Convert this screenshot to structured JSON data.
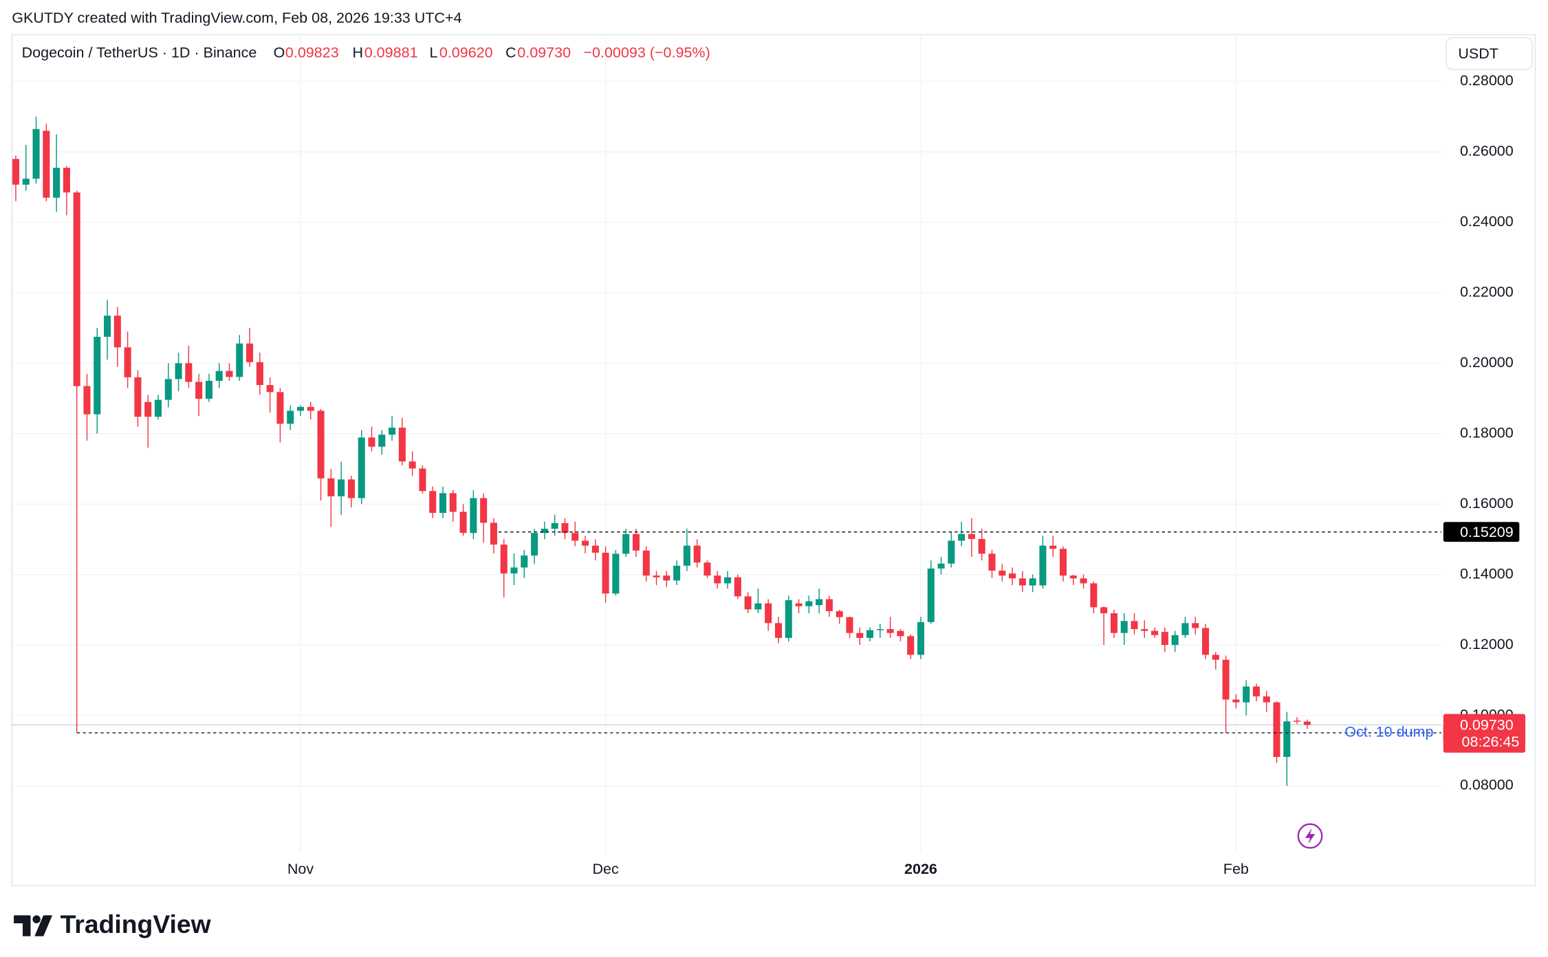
{
  "watermark": "GKUTDY created with TradingView.com, Feb 08, 2026 19:33 UTC+4",
  "logo": "TradingView",
  "chart_data": {
    "type": "candlestick",
    "title": "Dogecoin / TetherUS · 1D · Binance",
    "legend": {
      "labels": [
        "O",
        "H",
        "L",
        "C"
      ],
      "values": [
        "0.09823",
        "0.09881",
        "0.09620",
        "0.09730"
      ],
      "change": "−0.00093 (−0.95%)"
    },
    "currency": "USDT",
    "categories": [
      null,
      null,
      null,
      null,
      null,
      null,
      null,
      null,
      null,
      null,
      null,
      null,
      null,
      null,
      null,
      null,
      null,
      null,
      null,
      null,
      null,
      null,
      null,
      null,
      null,
      null,
      null,
      null,
      "Nov",
      null,
      null,
      null,
      null,
      null,
      null,
      null,
      null,
      null,
      null,
      null,
      null,
      null,
      null,
      null,
      null,
      null,
      null,
      null,
      null,
      null,
      null,
      null,
      null,
      null,
      null,
      null,
      null,
      null,
      "Dec",
      null,
      null,
      null,
      null,
      null,
      null,
      null,
      null,
      null,
      null,
      null,
      null,
      null,
      null,
      null,
      null,
      null,
      null,
      null,
      null,
      null,
      null,
      null,
      null,
      null,
      null,
      null,
      null,
      null,
      null,
      "2026",
      null,
      null,
      null,
      null,
      null,
      null,
      null,
      null,
      null,
      null,
      null,
      null,
      null,
      null,
      null,
      null,
      null,
      null,
      null,
      null,
      null,
      null,
      null,
      null,
      null,
      null,
      null,
      null,
      null,
      null,
      "Feb",
      null,
      null,
      null,
      null,
      null,
      null,
      null
    ],
    "open": [
      0.258,
      0.2507,
      0.2524,
      0.266,
      0.247,
      0.2555,
      0.2485,
      0.1935,
      0.1855,
      0.2075,
      0.2135,
      0.2045,
      0.196,
      0.189,
      0.1848,
      0.1896,
      0.1955,
      0.2,
      0.1947,
      0.1899,
      0.195,
      0.1978,
      0.1961,
      0.2056,
      0.2003,
      0.1938,
      0.1918,
      0.1828,
      0.1865,
      0.1876,
      0.1865,
      0.1673,
      0.1622,
      0.167,
      0.1617,
      0.1789,
      0.1763,
      0.1797,
      0.1817,
      0.1721,
      0.1701,
      0.1637,
      0.1575,
      0.1631,
      0.1578,
      0.1518,
      0.1617,
      0.1547,
      0.1485,
      0.1403,
      0.142,
      0.1454,
      0.1518,
      0.153,
      0.1546,
      0.1518,
      0.1496,
      0.1482,
      0.1462,
      0.1346,
      0.1459,
      0.1515,
      0.1468,
      0.1397,
      0.1397,
      0.1383,
      0.1425,
      0.1482,
      0.1434,
      0.1397,
      0.1375,
      0.1392,
      0.1338,
      0.1301,
      0.1318,
      0.1262,
      0.122,
      0.1318,
      0.131,
      0.1313,
      0.133,
      0.1296,
      0.1279,
      0.1234,
      0.122,
      0.1242,
      0.1245,
      0.124,
      0.1225,
      0.1172,
      0.1265,
      0.1417,
      0.1431,
      0.1496,
      0.1515,
      0.1501,
      0.1459,
      0.1411,
      0.1403,
      0.1389,
      0.1369,
      0.1369,
      0.1482,
      0.1473,
      0.1397,
      0.1389,
      0.1375,
      0.1307,
      0.129,
      0.1234,
      0.1268,
      0.1245,
      0.124,
      0.1237,
      0.12,
      0.1228,
      0.1262,
      0.1248,
      0.1172,
      0.1158,
      0.1045,
      0.1037,
      0.1082,
      0.1054,
      0.1037,
      0.0882,
      0.0985,
      0.09823
    ],
    "high": [
      0.259,
      0.262,
      0.27,
      0.268,
      0.265,
      0.256,
      0.249,
      0.197,
      0.21,
      0.218,
      0.216,
      0.209,
      0.198,
      0.191,
      0.191,
      0.2,
      0.203,
      0.205,
      0.197,
      0.197,
      0.2,
      0.2,
      0.208,
      0.21,
      0.203,
      0.196,
      0.193,
      0.188,
      0.188,
      0.189,
      0.187,
      0.17,
      0.172,
      0.168,
      0.181,
      0.182,
      0.181,
      0.185,
      0.1845,
      0.175,
      0.171,
      0.165,
      0.165,
      0.164,
      0.16,
      0.164,
      0.163,
      0.156,
      0.15,
      0.146,
      0.147,
      0.153,
      0.155,
      0.157,
      0.156,
      0.155,
      0.151,
      0.15,
      0.148,
      0.147,
      0.153,
      0.153,
      0.148,
      0.141,
      0.141,
      0.144,
      0.153,
      0.15,
      0.144,
      0.141,
      0.141,
      0.14,
      0.135,
      0.136,
      0.133,
      0.128,
      0.134,
      0.133,
      0.134,
      0.136,
      0.134,
      0.13,
      0.128,
      0.125,
      0.125,
      0.126,
      0.128,
      0.1245,
      0.123,
      0.128,
      0.144,
      0.145,
      0.152,
      0.155,
      0.156,
      0.153,
      0.147,
      0.143,
      0.142,
      0.141,
      0.14,
      0.151,
      0.151,
      0.148,
      0.14,
      0.14,
      0.138,
      0.131,
      0.13,
      0.129,
      0.129,
      0.127,
      0.125,
      0.125,
      0.124,
      0.128,
      0.128,
      0.126,
      0.118,
      0.117,
      0.106,
      0.11,
      0.109,
      0.107,
      0.104,
      0.101,
      0.0995,
      0.09881
    ],
    "low": [
      0.246,
      0.249,
      0.251,
      0.246,
      0.243,
      0.242,
      0.095,
      0.178,
      0.18,
      0.201,
      0.199,
      0.193,
      0.182,
      0.176,
      0.184,
      0.1875,
      0.192,
      0.193,
      0.185,
      0.189,
      0.193,
      0.195,
      0.195,
      0.199,
      0.191,
      0.186,
      0.1775,
      0.181,
      0.185,
      0.184,
      0.161,
      0.1535,
      0.157,
      0.159,
      0.16,
      0.175,
      0.174,
      0.178,
      0.171,
      0.168,
      0.163,
      0.156,
      0.156,
      0.155,
      0.151,
      0.15,
      0.149,
      0.146,
      0.1335,
      0.137,
      0.139,
      0.143,
      0.15,
      0.151,
      0.15,
      0.148,
      0.146,
      0.144,
      0.132,
      0.134,
      0.145,
      0.145,
      0.138,
      0.137,
      0.1365,
      0.137,
      0.141,
      0.142,
      0.139,
      0.136,
      0.136,
      0.133,
      0.129,
      0.129,
      0.124,
      0.1205,
      0.121,
      0.129,
      0.129,
      0.129,
      0.128,
      0.126,
      0.122,
      0.12,
      0.121,
      0.122,
      0.122,
      0.121,
      0.116,
      0.116,
      0.126,
      0.14,
      0.142,
      0.148,
      0.145,
      0.144,
      0.139,
      0.138,
      0.137,
      0.135,
      0.135,
      0.136,
      0.145,
      0.138,
      0.137,
      0.136,
      0.129,
      0.12,
      0.122,
      0.12,
      0.123,
      0.122,
      0.122,
      0.118,
      0.118,
      0.122,
      0.123,
      0.116,
      0.113,
      0.095,
      0.102,
      0.1,
      0.104,
      0.101,
      0.0865,
      0.08,
      0.0975,
      0.0962
    ],
    "close": [
      0.2507,
      0.2524,
      0.2665,
      0.247,
      0.2555,
      0.2485,
      0.1935,
      0.1855,
      0.2075,
      0.2135,
      0.2045,
      0.196,
      0.1848,
      0.1848,
      0.1896,
      0.1955,
      0.2,
      0.1947,
      0.1899,
      0.195,
      0.1978,
      0.1961,
      0.2056,
      0.2003,
      0.1938,
      0.1918,
      0.1828,
      0.1865,
      0.1876,
      0.1865,
      0.1673,
      0.1622,
      0.167,
      0.1617,
      0.1789,
      0.1763,
      0.1797,
      0.1817,
      0.1721,
      0.1701,
      0.1637,
      0.1575,
      0.1631,
      0.1578,
      0.1518,
      0.1617,
      0.1547,
      0.1485,
      0.1403,
      0.142,
      0.1454,
      0.1518,
      0.153,
      0.1546,
      0.1518,
      0.1496,
      0.1482,
      0.1462,
      0.1346,
      0.1459,
      0.1515,
      0.1468,
      0.1397,
      0.1392,
      0.1383,
      0.1425,
      0.1482,
      0.1434,
      0.1397,
      0.1375,
      0.1392,
      0.1338,
      0.1301,
      0.1318,
      0.1262,
      0.122,
      0.1327,
      0.131,
      0.1324,
      0.133,
      0.1296,
      0.1279,
      0.1234,
      0.122,
      0.1242,
      0.1245,
      0.1234,
      0.1225,
      0.1172,
      0.1265,
      0.1417,
      0.1431,
      0.1496,
      0.1515,
      0.1501,
      0.1459,
      0.1411,
      0.1397,
      0.1389,
      0.1369,
      0.1389,
      0.1482,
      0.1473,
      0.1397,
      0.1389,
      0.1375,
      0.1307,
      0.129,
      0.1234,
      0.1268,
      0.1245,
      0.124,
      0.1228,
      0.12,
      0.1228,
      0.1262,
      0.1248,
      0.1172,
      0.1158,
      0.1045,
      0.1037,
      0.1082,
      0.1054,
      0.1037,
      0.0882,
      0.0983,
      0.0982,
      0.0973
    ],
    "up_color": "#089981",
    "down_color": "#f23645",
    "ylim": [
      0.068,
      0.293
    ],
    "yticks": [
      {
        "value": 0.08,
        "label": "0.08000"
      },
      {
        "value": 0.1,
        "label": "0.10000"
      },
      {
        "value": 0.12,
        "label": "0.12000"
      },
      {
        "value": 0.14,
        "label": "0.14000"
      },
      {
        "value": 0.16,
        "label": "0.16000"
      },
      {
        "value": 0.18,
        "label": "0.18000"
      },
      {
        "value": 0.2,
        "label": "0.20000"
      },
      {
        "value": 0.22,
        "label": "0.22000"
      },
      {
        "value": 0.24,
        "label": "0.24000"
      },
      {
        "value": 0.26,
        "label": "0.26000"
      },
      {
        "value": 0.28,
        "label": "0.28000"
      }
    ],
    "grid": true,
    "price_lines": [
      {
        "value": 0.15209
      },
      {
        "value": 0.09504,
        "label": "Oct. 10 dump"
      }
    ],
    "last_price": {
      "value": 0.0973,
      "label": "0.09730",
      "countdown": "08:26:45"
    }
  }
}
